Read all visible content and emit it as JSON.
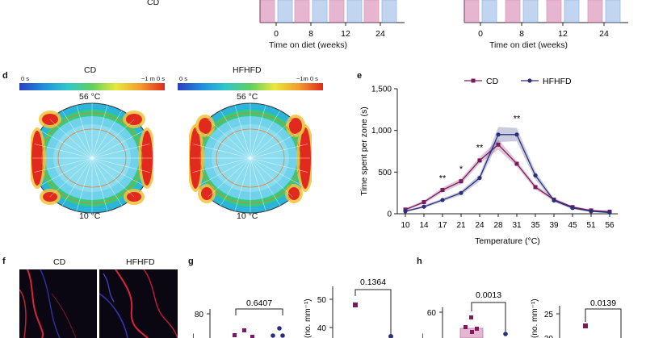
{
  "top": {
    "cd_label": "CD",
    "left_xticks": [
      "0",
      "8",
      "12",
      "24"
    ],
    "right_xticks": [
      "0",
      "8",
      "12",
      "24"
    ],
    "xlabel": "Time on diet (weeks)",
    "colors": {
      "cd": "#c0508a",
      "hfhfd": "#4a7fd0",
      "cd_fill": "#d27aa8",
      "hfhfd_fill": "#8fb3e6"
    }
  },
  "panel_d": {
    "label": "d",
    "maps": [
      {
        "title": "CD",
        "scale_min": "0 s",
        "scale_max": "~1 m 0 s",
        "top_temp": "56 °C",
        "bottom_temp": "10 °C"
      },
      {
        "title": "HFHFD",
        "scale_min": "0 s",
        "scale_max": "~1m 0 s",
        "top_temp": "56 °C",
        "bottom_temp": "10 °C"
      }
    ]
  },
  "panel_e": {
    "label": "e",
    "legend": [
      {
        "name": "CD",
        "color": "#7b1a5e"
      },
      {
        "name": "HFHFD",
        "color": "#2b2f7a"
      }
    ],
    "chart_data": {
      "type": "line",
      "title": "",
      "xlabel": "Temperature (°C)",
      "ylabel": "Time spent per zone (s)",
      "x": [
        10,
        14,
        17,
        21,
        24,
        28,
        31,
        35,
        39,
        45,
        51,
        56
      ],
      "ylim": [
        0,
        1500
      ],
      "yticks": [
        "0",
        "500",
        "1,000",
        "1,500"
      ],
      "series": [
        {
          "name": "CD",
          "color": "#7b1a5e",
          "values": [
            50,
            140,
            285,
            390,
            640,
            830,
            600,
            320,
            170,
            80,
            40,
            25
          ],
          "err": [
            15,
            20,
            30,
            35,
            40,
            60,
            35,
            30,
            20,
            15,
            10,
            10
          ]
        },
        {
          "name": "HFHFD",
          "color": "#2b2f7a",
          "values": [
            30,
            85,
            165,
            250,
            430,
            950,
            950,
            460,
            160,
            70,
            30,
            15
          ],
          "err": [
            10,
            15,
            20,
            25,
            40,
            90,
            80,
            50,
            20,
            15,
            10,
            10
          ]
        }
      ],
      "annotations": [
        {
          "x": 17,
          "text": "**"
        },
        {
          "x": 21,
          "text": "*"
        },
        {
          "x": 24,
          "text": "**"
        },
        {
          "x": 31,
          "text": "**"
        }
      ]
    }
  },
  "panel_f": {
    "label": "f",
    "titles": [
      "CD",
      "HFHFD"
    ]
  },
  "panel_g": {
    "label": "g",
    "left": {
      "ytick": "80",
      "pvalue": "0.6407"
    },
    "right": {
      "ylabel": "(no. mm⁻¹)",
      "yticks": [
        "50",
        "40"
      ],
      "pvalue": "0.1364"
    }
  },
  "panel_h": {
    "label": "h",
    "left": {
      "ytick": "60",
      "pvalue": "0.0013"
    },
    "right": {
      "ylabel": "(no. mm⁻¹)",
      "yticks": [
        "25",
        "20"
      ],
      "pvalue": "0.0139"
    }
  }
}
